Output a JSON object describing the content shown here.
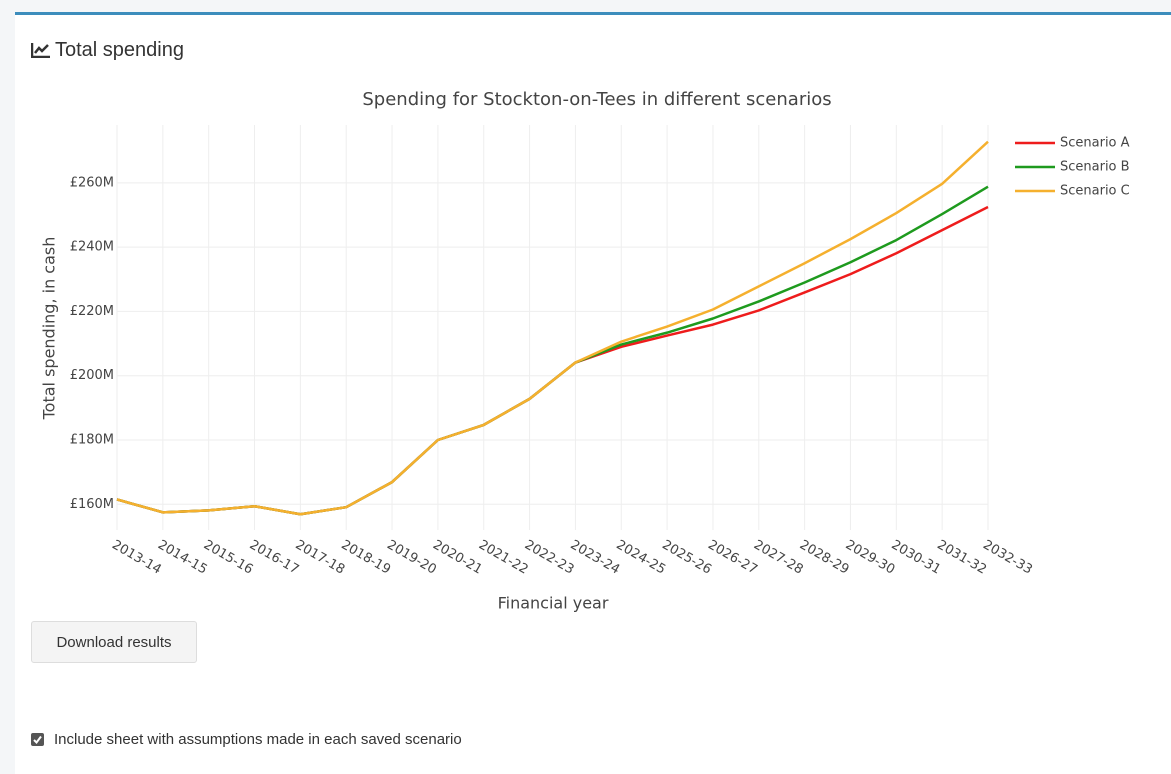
{
  "header": {
    "title": "Total spending"
  },
  "chart_data": {
    "type": "line",
    "title": "Spending for Stockton-on-Tees in different scenarios",
    "x_label": "Financial year",
    "y_label": "Total spending, in cash",
    "categories": [
      "2013-14",
      "2014-15",
      "2015-16",
      "2016-17",
      "2017-18",
      "2018-19",
      "2019-20",
      "2020-21",
      "2021-22",
      "2022-23",
      "2023-24",
      "2024-25",
      "2025-26",
      "2026-27",
      "2027-28",
      "2028-29",
      "2029-30",
      "2030-31",
      "2031-32",
      "2032-33"
    ],
    "series": [
      {
        "name": "Scenario A",
        "color": "#ee1c1c",
        "values": [
          161.5,
          157.5,
          158.1,
          159.4,
          156.9,
          159.1,
          166.9,
          180,
          184.7,
          192.8,
          204.1,
          209,
          212.5,
          215.9,
          220.3,
          225.9,
          231.6,
          238.1,
          245.3,
          252.5
        ]
      },
      {
        "name": "Scenario B",
        "color": "#1e9a1e",
        "values": [
          161.5,
          157.5,
          158.1,
          159.4,
          156.9,
          159.1,
          166.9,
          180,
          184.7,
          192.8,
          204.1,
          209.7,
          213.4,
          217.8,
          223.1,
          229,
          235.3,
          242.2,
          250.3,
          258.8
        ]
      },
      {
        "name": "Scenario C",
        "color": "#f5b02e",
        "values": [
          161.5,
          157.5,
          158.1,
          159.4,
          156.9,
          159.1,
          166.9,
          180,
          184.7,
          192.8,
          204.1,
          210.6,
          215.3,
          220.6,
          227.8,
          235,
          242.5,
          250.6,
          259.7,
          272.8
        ]
      }
    ],
    "ylim": [
      152,
      278
    ],
    "yticks": [
      {
        "value": 160,
        "label": "£160M"
      },
      {
        "value": 180,
        "label": "£180M"
      },
      {
        "value": 200,
        "label": "£200M"
      },
      {
        "value": 220,
        "label": "£220M"
      },
      {
        "value": 240,
        "label": "£240M"
      },
      {
        "value": 260,
        "label": "£260M"
      }
    ],
    "grid": true,
    "legend": "top-right"
  },
  "controls": {
    "button": "Download results",
    "checkbox": "Include sheet with assumptions made in each saved scenario"
  }
}
